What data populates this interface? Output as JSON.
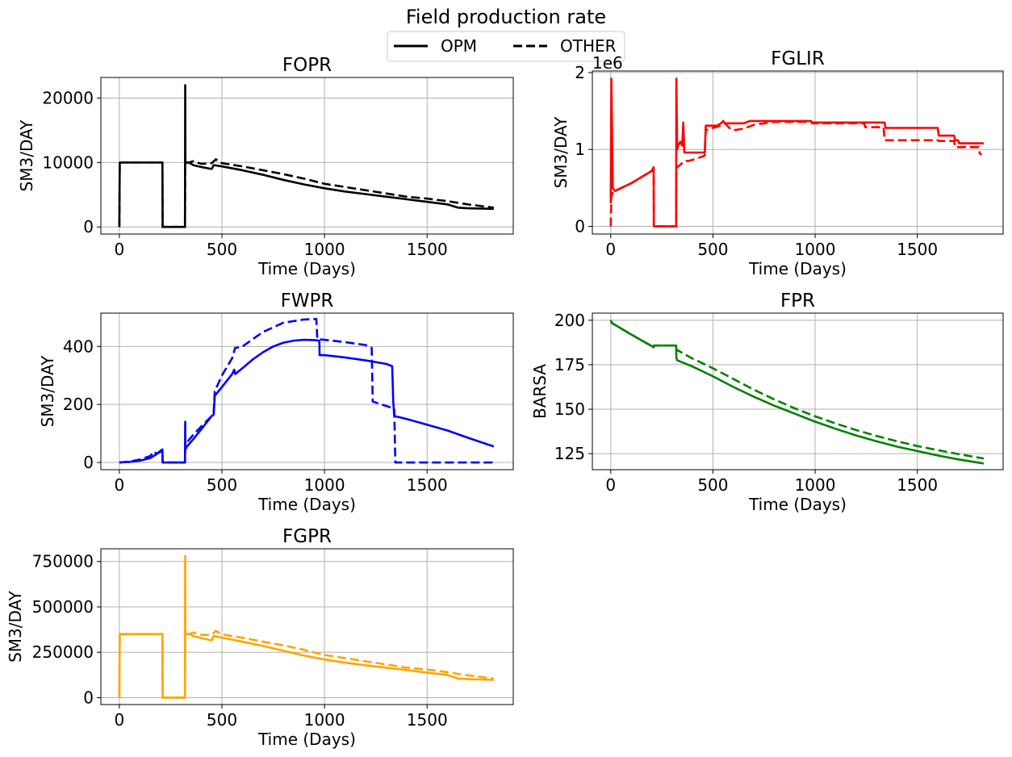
{
  "figure": {
    "suptitle": "Field production rate",
    "legend": {
      "placement": "top-center",
      "entries": [
        {
          "label": "OPM",
          "style": "solid"
        },
        {
          "label": "OTHER",
          "style": "dashed"
        }
      ]
    }
  },
  "chart_data": [
    {
      "id": "fopr",
      "type": "line",
      "title": "FOPR",
      "xlabel": "Time (Days)",
      "ylabel": "SM3/DAY",
      "xlim": [
        -90,
        1920
      ],
      "ylim": [
        -1100,
        23200
      ],
      "xticks": [
        0,
        500,
        1000,
        1500
      ],
      "yticks": [
        0,
        10000,
        20000
      ],
      "ytick_labels": [
        "0",
        "10000",
        "20000"
      ],
      "grid": true,
      "color": "#000000",
      "series": [
        {
          "name": "OPM",
          "style": "solid",
          "x": [
            0,
            2,
            210,
            211,
            320,
            321,
            322,
            330,
            340,
            360,
            400,
            450,
            460,
            500,
            550,
            600,
            700,
            800,
            900,
            1000,
            1100,
            1200,
            1300,
            1400,
            1500,
            1600,
            1650,
            1700,
            1825
          ],
          "y": [
            0,
            10000,
            10000,
            0,
            0,
            22000,
            9800,
            10000,
            10000,
            9600,
            9300,
            9000,
            9600,
            9400,
            9100,
            8800,
            8100,
            7300,
            6600,
            6000,
            5500,
            5100,
            4700,
            4300,
            3900,
            3500,
            3000,
            2900,
            2800
          ]
        },
        {
          "name": "OTHER",
          "style": "dashed",
          "x": [
            0,
            2,
            210,
            211,
            320,
            321,
            340,
            360,
            400,
            450,
            470,
            500,
            600,
            700,
            800,
            900,
            1000,
            1100,
            1200,
            1300,
            1400,
            1500,
            1600,
            1700,
            1825
          ],
          "y": [
            0,
            10000,
            10000,
            0,
            0,
            10000,
            10000,
            10200,
            9800,
            9900,
            10500,
            9900,
            9400,
            8800,
            8200,
            7500,
            6700,
            6200,
            5700,
            5200,
            4700,
            4400,
            4000,
            3500,
            3000
          ]
        }
      ]
    },
    {
      "id": "fglir",
      "type": "line",
      "title": "FGLIR",
      "xlabel": "Time (Days)",
      "ylabel": "SM3/DAY",
      "xlim": [
        -90,
        1920
      ],
      "ylim": [
        -100000,
        2020000
      ],
      "xticks": [
        0,
        500,
        1000,
        1500
      ],
      "yticks": [
        0,
        1000000,
        2000000
      ],
      "ytick_labels": [
        "0",
        "1",
        "2"
      ],
      "offset_text": "1e6",
      "grid": true,
      "color": "#ff0000",
      "series": [
        {
          "name": "OPM",
          "style": "solid",
          "x": [
            0,
            3,
            10,
            20,
            100,
            200,
            210,
            211,
            320,
            321,
            325,
            330,
            340,
            350,
            355,
            360,
            370,
            460,
            465,
            520,
            540,
            550,
            560,
            600,
            650,
            680,
            980,
            985,
            1340,
            1345,
            1600,
            1605,
            1680,
            1685,
            1700,
            1705,
            1825
          ],
          "y": [
            300000,
            1920000,
            500000,
            460000,
            560000,
            720000,
            770000,
            0,
            0,
            1920000,
            1000000,
            1050000,
            1100000,
            1050000,
            1350000,
            960000,
            960000,
            960000,
            1310000,
            1310000,
            1340000,
            1370000,
            1340000,
            1340000,
            1340000,
            1370000,
            1370000,
            1350000,
            1350000,
            1280000,
            1280000,
            1180000,
            1180000,
            1120000,
            1120000,
            1080000,
            1080000
          ]
        },
        {
          "name": "OTHER",
          "style": "dashed",
          "x": [
            0,
            3,
            10,
            20,
            100,
            200,
            210,
            211,
            320,
            321,
            330,
            340,
            360,
            380,
            420,
            460,
            465,
            500,
            540,
            560,
            580,
            600,
            650,
            700,
            750,
            800,
            980,
            985,
            1240,
            1245,
            1335,
            1340,
            1600,
            1605,
            1680,
            1685,
            1800,
            1805,
            1815
          ],
          "y": [
            0,
            380000,
            450000,
            460000,
            560000,
            720000,
            750000,
            0,
            0,
            760000,
            780000,
            800000,
            850000,
            850000,
            880000,
            920000,
            1250000,
            1280000,
            1310000,
            1340000,
            1280000,
            1250000,
            1270000,
            1320000,
            1340000,
            1360000,
            1360000,
            1340000,
            1340000,
            1290000,
            1290000,
            1120000,
            1120000,
            1110000,
            1110000,
            1030000,
            1030000,
            950000,
            930000
          ]
        }
      ]
    },
    {
      "id": "fwpr",
      "type": "line",
      "title": "FWPR",
      "xlabel": "Time (Days)",
      "ylabel": "SM3/DAY",
      "xlim": [
        -90,
        1920
      ],
      "ylim": [
        -25,
        515
      ],
      "xticks": [
        0,
        500,
        1000,
        1500
      ],
      "yticks": [
        0,
        200,
        400
      ],
      "ytick_labels": [
        "0",
        "200",
        "400"
      ],
      "grid": true,
      "color": "#0000ff",
      "series": [
        {
          "name": "OPM",
          "style": "solid",
          "x": [
            0,
            50,
            100,
            150,
            180,
            200,
            210,
            211,
            320,
            321,
            322,
            330,
            360,
            400,
            450,
            460,
            465,
            500,
            550,
            560,
            565,
            600,
            650,
            700,
            750,
            800,
            850,
            900,
            950,
            975,
            976,
            1000,
            1100,
            1200,
            1300,
            1330,
            1335,
            1340,
            1400,
            1500,
            1600,
            1700,
            1825
          ],
          "y": [
            0,
            2,
            6,
            15,
            28,
            40,
            45,
            0,
            0,
            140,
            45,
            55,
            80,
            115,
            160,
            165,
            230,
            260,
            305,
            320,
            305,
            325,
            355,
            380,
            400,
            413,
            420,
            423,
            422,
            420,
            370,
            370,
            362,
            352,
            340,
            332,
            210,
            160,
            150,
            130,
            110,
            85,
            55
          ]
        },
        {
          "name": "OTHER",
          "style": "dashed",
          "x": [
            0,
            50,
            100,
            150,
            170,
            180,
            200,
            210,
            211,
            320,
            321,
            330,
            360,
            400,
            450,
            460,
            465,
            500,
            550,
            560,
            565,
            600,
            700,
            800,
            900,
            960,
            965,
            1000,
            1100,
            1200,
            1230,
            1235,
            1300,
            1340,
            1345,
            1825
          ],
          "y": [
            0,
            3,
            10,
            22,
            38,
            30,
            36,
            40,
            0,
            0,
            60,
            70,
            95,
            125,
            160,
            175,
            245,
            300,
            360,
            385,
            395,
            400,
            450,
            482,
            493,
            495,
            425,
            423,
            415,
            405,
            395,
            210,
            195,
            185,
            0,
            0
          ]
        }
      ]
    },
    {
      "id": "fpr",
      "type": "line",
      "title": "FPR",
      "xlabel": "Time (Days)",
      "ylabel": "BARSA",
      "xlim": [
        -90,
        1920
      ],
      "ylim": [
        116,
        204
      ],
      "xticks": [
        0,
        500,
        1000,
        1500
      ],
      "yticks": [
        125,
        150,
        175,
        200
      ],
      "ytick_labels": [
        "125",
        "150",
        "175",
        "200"
      ],
      "grid": true,
      "color": "#008000",
      "series": [
        {
          "name": "OPM",
          "style": "solid",
          "x": [
            0,
            5,
            100,
            200,
            210,
            211,
            320,
            321,
            325,
            400,
            500,
            600,
            700,
            800,
            900,
            1000,
            1100,
            1200,
            1300,
            1400,
            1500,
            1600,
            1700,
            1825
          ],
          "y": [
            200,
            198.5,
            192,
            185.5,
            184.8,
            185.8,
            185.8,
            179,
            177.5,
            174,
            168.5,
            162.5,
            157,
            152,
            147.5,
            143,
            139,
            135.3,
            132,
            129,
            126.5,
            124,
            121.8,
            119.5
          ]
        },
        {
          "name": "OTHER",
          "style": "dashed",
          "x": [
            0,
            5,
            100,
            200,
            210,
            211,
            320,
            321,
            400,
            500,
            600,
            700,
            800,
            900,
            1000,
            1100,
            1200,
            1300,
            1400,
            1500,
            1600,
            1700,
            1825
          ],
          "y": [
            200,
            198.5,
            192,
            185.5,
            184.8,
            185.8,
            185.8,
            183.5,
            178.5,
            173,
            167,
            161,
            155.5,
            150.5,
            146,
            142,
            138.3,
            135,
            132,
            129.3,
            127,
            124.8,
            122.3
          ]
        }
      ]
    },
    {
      "id": "fgpr",
      "type": "line",
      "title": "FGPR",
      "xlabel": "Time (Days)",
      "ylabel": "SM3/DAY",
      "xlim": [
        -90,
        1920
      ],
      "ylim": [
        -38000,
        820000
      ],
      "xticks": [
        0,
        500,
        1000,
        1500
      ],
      "yticks": [
        0,
        250000,
        500000,
        750000
      ],
      "ytick_labels": [
        "0",
        "250000",
        "500000",
        "750000"
      ],
      "grid": true,
      "color": "#ffa500",
      "series": [
        {
          "name": "OPM",
          "style": "solid",
          "x": [
            0,
            2,
            210,
            211,
            320,
            321,
            322,
            330,
            340,
            360,
            400,
            450,
            460,
            500,
            550,
            600,
            700,
            800,
            900,
            1000,
            1100,
            1200,
            1300,
            1400,
            1500,
            1600,
            1650,
            1700,
            1825
          ],
          "y": [
            0,
            350000,
            350000,
            0,
            0,
            780000,
            345000,
            350000,
            350000,
            340000,
            328000,
            315000,
            340000,
            330000,
            320000,
            308000,
            285000,
            258000,
            232000,
            210000,
            193000,
            178000,
            165000,
            152000,
            138000,
            125000,
            105000,
            102000,
            98000
          ]
        },
        {
          "name": "OTHER",
          "style": "dashed",
          "x": [
            0,
            2,
            210,
            211,
            320,
            321,
            340,
            360,
            400,
            450,
            470,
            500,
            600,
            700,
            800,
            900,
            1000,
            1100,
            1200,
            1300,
            1400,
            1500,
            1600,
            1700,
            1825
          ],
          "y": [
            0,
            350000,
            350000,
            0,
            0,
            350000,
            350000,
            358000,
            345000,
            347000,
            368000,
            348000,
            330000,
            308000,
            288000,
            263000,
            235000,
            218000,
            200000,
            183000,
            165000,
            155000,
            140000,
            123000,
            105000
          ]
        }
      ]
    }
  ]
}
